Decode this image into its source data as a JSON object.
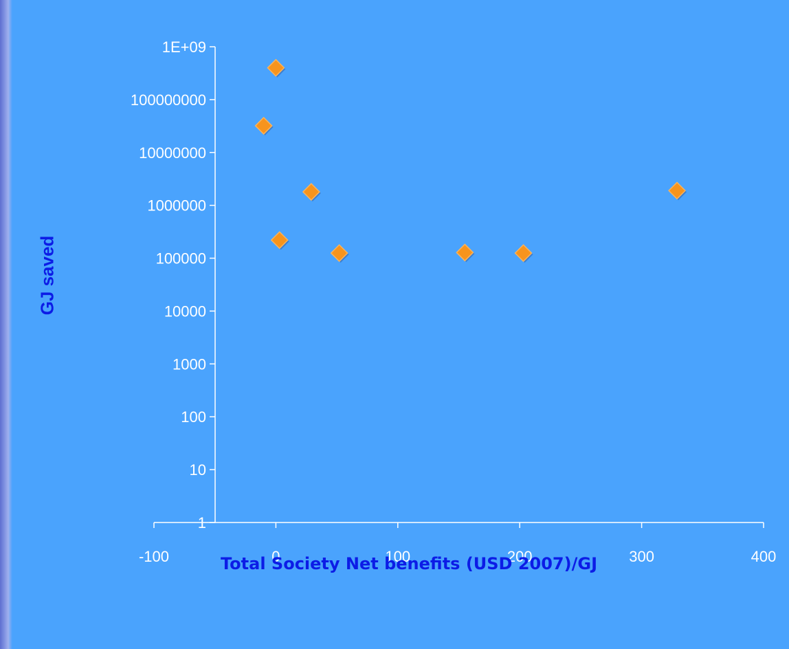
{
  "chart_data": {
    "type": "scatter",
    "xlabel": "Total Society Net benefits (USD 2007)/GJ",
    "ylabel": "GJ saved",
    "xlim": [
      -100,
      400
    ],
    "ylim": [
      1,
      1000000000
    ],
    "yscale": "log",
    "x_ticks": [
      "-100",
      "0",
      "100",
      "200",
      "300",
      "400"
    ],
    "y_ticks": [
      "1",
      "10",
      "100",
      "1000",
      "10000",
      "100000",
      "1000000",
      "10000000",
      "100000000",
      "1E+09"
    ],
    "grid": false,
    "legend": "none",
    "marker": "diamond",
    "marker_color": "#f7941d",
    "points": [
      {
        "x": 0,
        "y": 400000000
      },
      {
        "x": -10,
        "y": 32000000
      },
      {
        "x": 29,
        "y": 1800000
      },
      {
        "x": 3,
        "y": 220000
      },
      {
        "x": 52,
        "y": 125000
      },
      {
        "x": 155,
        "y": 128000
      },
      {
        "x": 203,
        "y": 125000
      },
      {
        "x": 329,
        "y": 1900000
      }
    ]
  }
}
